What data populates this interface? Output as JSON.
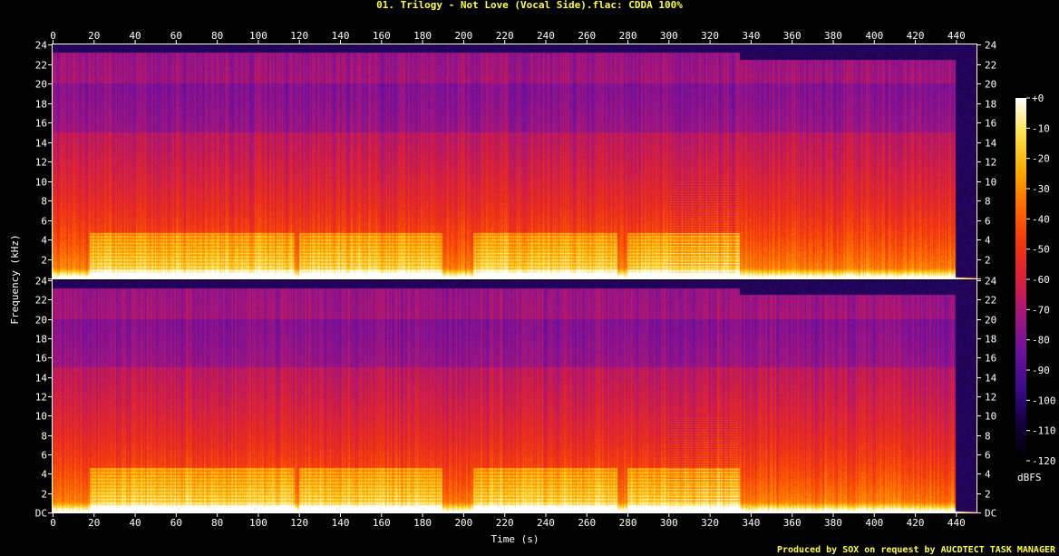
{
  "chart_data": {
    "type": "heatmap",
    "title": "01. Trilogy - Not Love (Vocal Side).flac: CDDA 100%",
    "xlabel": "Time (s)",
    "ylabel": "Frequency (kHz)",
    "colorbar_label": "dBFS",
    "credit": "Produced by SOX on request by AUCDTECT TASK MANAGER",
    "xlim": [
      0,
      450
    ],
    "x_ticks": [
      0,
      20,
      40,
      60,
      80,
      100,
      120,
      140,
      160,
      180,
      200,
      220,
      240,
      260,
      280,
      300,
      320,
      340,
      360,
      380,
      400,
      420,
      440
    ],
    "ylim_khz": [
      0,
      24
    ],
    "y_tick_labels_top": [
      "2",
      "4",
      "6",
      "8",
      "10",
      "12",
      "14",
      "16",
      "18",
      "20",
      "22",
      "24"
    ],
    "y_tick_labels_bottom": [
      "DC",
      "2",
      "4",
      "6",
      "8",
      "10",
      "12",
      "14",
      "16",
      "18",
      "20",
      "22",
      "24"
    ],
    "colorbar_ticks": [
      "+0",
      "-10",
      "-20",
      "-30",
      "-40",
      "-50",
      "-60",
      "-70",
      "-80",
      "-90",
      "-100",
      "-110",
      "-120"
    ],
    "colorbar_range_dbfs": [
      -120,
      0
    ],
    "channels": 2,
    "grid": false,
    "colors": {
      "background": "#000000",
      "title": "#ffff33",
      "axis": "#ffffff",
      "colormap": [
        "#000000",
        "#12003a",
        "#3a0a8c",
        "#6e109e",
        "#a3157f",
        "#d9203a",
        "#f2370f",
        "#ff6a00",
        "#ffaa00",
        "#ffe04a",
        "#ffffff"
      ]
    },
    "high_energy_segments_s": [
      [
        18,
        118
      ],
      [
        120,
        190
      ],
      [
        205,
        275
      ],
      [
        280,
        335
      ]
    ],
    "quiet_segments_s": [
      [
        0,
        18
      ],
      [
        190,
        205
      ],
      [
        335,
        440
      ],
      [
        440,
        450
      ]
    ],
    "spectral_cutoff_khz_until_s": [
      [
        335,
        23.2
      ],
      [
        440,
        22.5
      ],
      [
        450,
        0
      ]
    ]
  }
}
